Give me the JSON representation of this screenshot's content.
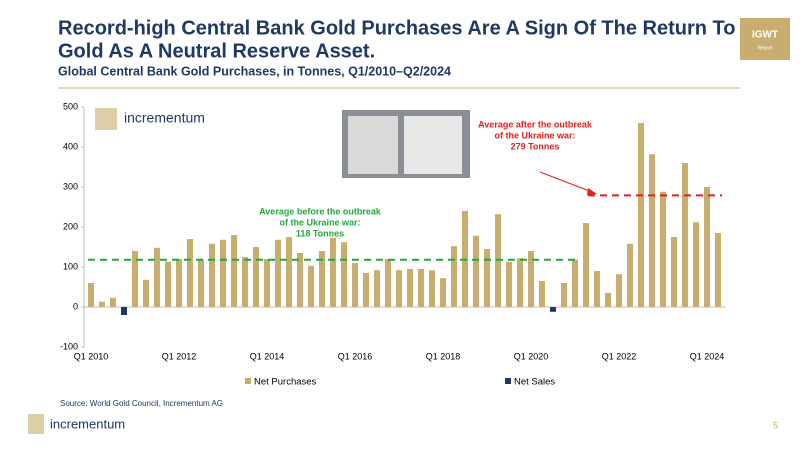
{
  "page": {
    "title_lines": [
      "Record-high Central Bank Gold Purchases Are A Sign Of The Return To",
      "Gold As A Neutral Reserve Asset."
    ],
    "subtitle": "Global Central Bank Gold Purchases, in Tonnes, Q1/2010–Q2/2024",
    "badge": "IGWT",
    "badge_sub": "Report",
    "logo": "incrementum",
    "footer_logo": "incrementum",
    "source": "Source: World Gold Council, Incrementum AG",
    "page_number": "5"
  },
  "chart_data": {
    "type": "bar",
    "categories": [
      "Q1 2010",
      null,
      null,
      null,
      null,
      null,
      null,
      null,
      "Q1 2012",
      null,
      null,
      null,
      null,
      null,
      null,
      null,
      "Q1 2014",
      null,
      null,
      null,
      null,
      null,
      null,
      null,
      "Q1 2016",
      null,
      null,
      null,
      null,
      null,
      null,
      null,
      "Q1 2018",
      null,
      null,
      null,
      null,
      null,
      null,
      null,
      "Q1 2020",
      null,
      null,
      null,
      null,
      null,
      null,
      null,
      "Q1 2022",
      null,
      null,
      null,
      null,
      null,
      null,
      null,
      "Q1 2024",
      null
    ],
    "series": [
      {
        "name": "Net Purchases",
        "color": "#c8ad6e",
        "values": [
          60,
          13,
          23,
          null,
          140,
          68,
          148,
          113,
          120,
          170,
          118,
          158,
          168,
          180,
          125,
          150,
          120,
          168,
          175,
          135,
          103,
          140,
          173,
          162,
          110,
          85,
          92,
          120,
          92,
          95,
          95,
          92,
          72,
          152,
          240,
          178,
          145,
          232,
          113,
          122,
          140,
          65,
          null,
          60,
          118,
          210,
          90,
          35,
          82,
          158,
          460,
          382,
          288,
          175,
          360,
          212,
          300,
          185
        ]
      },
      {
        "name": "Net Sales",
        "color": "#1f3864",
        "values": [
          null,
          null,
          null,
          -20,
          null,
          null,
          null,
          null,
          null,
          null,
          null,
          null,
          null,
          null,
          null,
          null,
          null,
          null,
          null,
          null,
          null,
          null,
          null,
          null,
          null,
          null,
          null,
          null,
          null,
          null,
          null,
          null,
          null,
          null,
          null,
          null,
          null,
          null,
          null,
          null,
          null,
          null,
          -12,
          null,
          null,
          null,
          null,
          null,
          null,
          null,
          null,
          null,
          null,
          null,
          null,
          null,
          null,
          null
        ]
      }
    ],
    "ylim": [
      -100,
      500
    ],
    "yticks": [
      -100,
      0,
      100,
      200,
      300,
      400,
      500
    ],
    "averages": [
      {
        "value": 118,
        "color": "#1faa3a",
        "label_lines": [
          "Average before the outbreak",
          "of the Ukraine war:",
          "118 Tonnes"
        ]
      },
      {
        "value": 279,
        "color": "#e0201b",
        "label_lines": [
          "Average after the outbreak",
          "of the Ukraine war:",
          "279 Tonnes"
        ]
      }
    ]
  }
}
